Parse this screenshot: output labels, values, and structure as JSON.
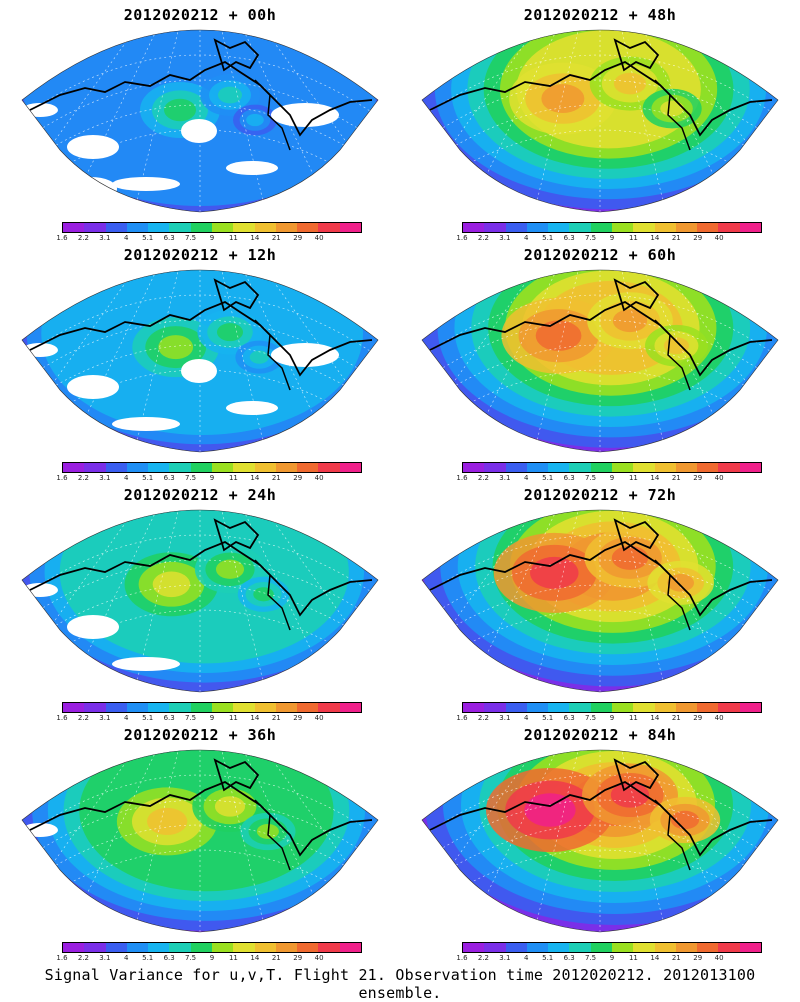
{
  "panels": [
    {
      "title": "2012020212 + 00h",
      "forecast_hour": 0
    },
    {
      "title": "2012020212 + 12h",
      "forecast_hour": 12
    },
    {
      "title": "2012020212 + 24h",
      "forecast_hour": 24
    },
    {
      "title": "2012020212 + 36h",
      "forecast_hour": 36
    },
    {
      "title": "2012020212 + 48h",
      "forecast_hour": 48
    },
    {
      "title": "2012020212 + 60h",
      "forecast_hour": 60
    },
    {
      "title": "2012020212 + 72h",
      "forecast_hour": 72
    },
    {
      "title": "2012020212 + 84h",
      "forecast_hour": 84
    }
  ],
  "colorbar": {
    "labels": [
      "1.6",
      "2.2",
      "3.1",
      "4",
      "5.1",
      "6.3",
      "7.5",
      "9",
      "11",
      "14",
      "21",
      "29",
      "40"
    ],
    "colors": [
      "#9a1fe0",
      "#7a2fe8",
      "#3a5ef0",
      "#1f8ff5",
      "#16b4f0",
      "#1ccfb6",
      "#20d060",
      "#9ae020",
      "#e0e030",
      "#f0c030",
      "#f09830",
      "#f06a30",
      "#f03a4a",
      "#f0208a"
    ]
  },
  "caption": "Signal Variance for u,v,T. Flight 21. Observation time 2012020212. 2012013100 ensemble."
}
